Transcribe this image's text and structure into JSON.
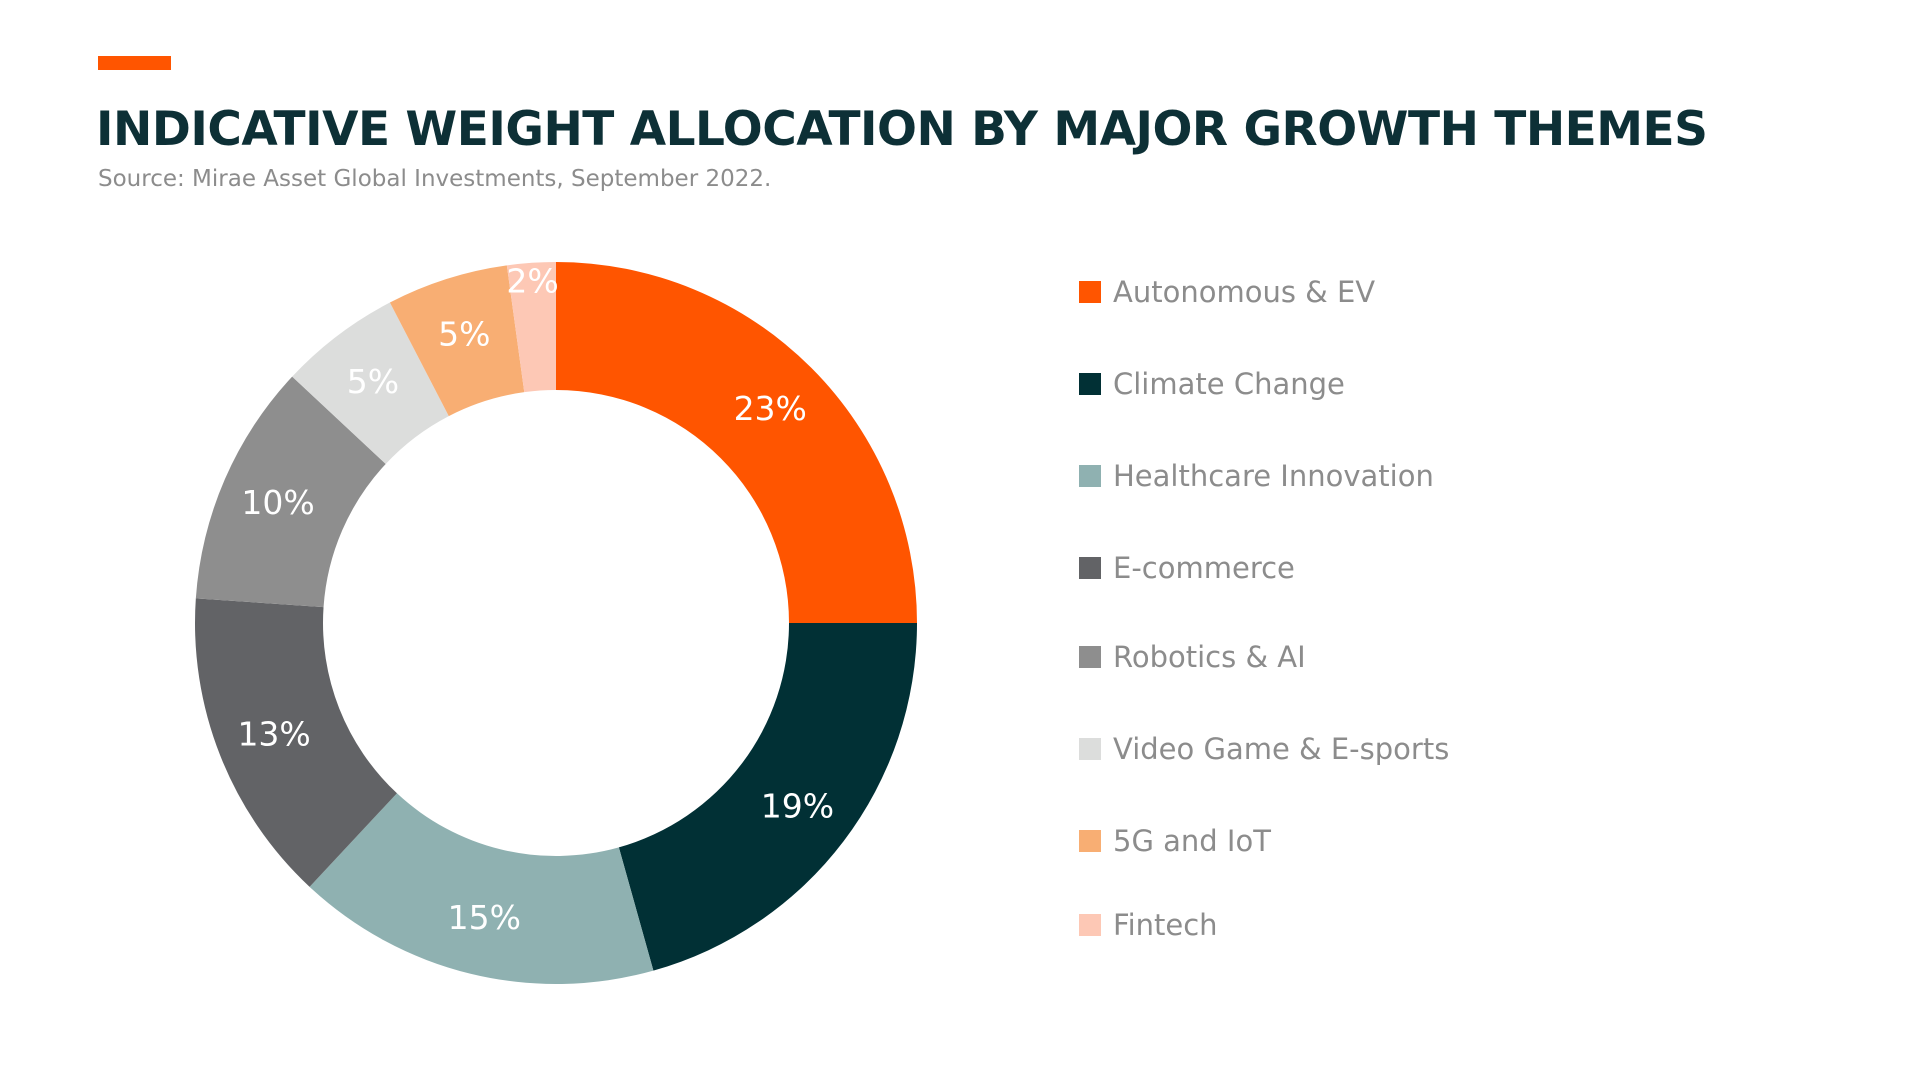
{
  "header": {
    "title": "INDICATIVE WEIGHT ALLOCATION BY MAJOR GROWTH THEMES",
    "source": "Source: Mirae Asset Global Investments, September 2022."
  },
  "colors": {
    "accent": "#FF5500",
    "title": "#0D3036",
    "subtitle": "#8C8C8C",
    "legend_text": "#8C8C8C",
    "slice_label": "#FFFFFF"
  },
  "chart_data": {
    "type": "pie",
    "donut": true,
    "start": "12 o'clock",
    "direction": "clockwise",
    "legend_position": "right",
    "categories": [
      "Autonomous & EV",
      "Climate Change",
      "Healthcare Innovation",
      "E-commerce",
      "Robotics & AI",
      "Video Game & E-sports",
      "5G and IoT",
      "Fintech"
    ],
    "values": [
      23,
      19,
      15,
      13,
      10,
      5,
      5,
      2
    ],
    "data_labels": [
      "23%",
      "19%",
      "15%",
      "13%",
      "10%",
      "5%",
      "5%",
      "2%"
    ],
    "colors": [
      "#FF5500",
      "#013035",
      "#8FB1B1",
      "#626366",
      "#8E8E8E",
      "#DCDDDC",
      "#F8AE73",
      "#FDC8B5"
    ]
  }
}
